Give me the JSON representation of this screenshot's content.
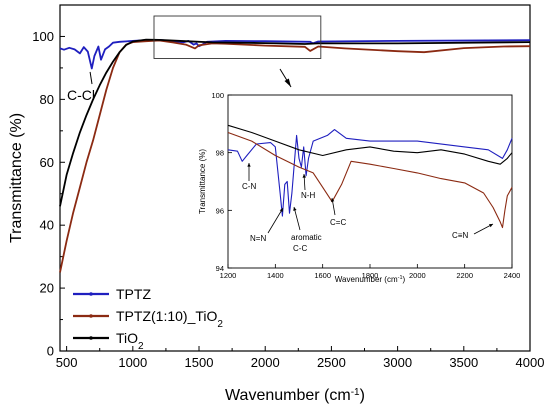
{
  "chart_data": [
    {
      "type": "line",
      "xlabel": "Wavenumber (cm",
      "xlabel_sup": "-1",
      "xlabel_end": ")",
      "ylabel": "Transmittance (%)",
      "xlim": [
        450,
        4000
      ],
      "ylim": [
        0,
        110
      ],
      "x_ticks": [
        500,
        1000,
        1500,
        2000,
        2500,
        3000,
        3500,
        4000
      ],
      "y_ticks": [
        0,
        20,
        40,
        60,
        80,
        100
      ],
      "legend": {
        "position": "bottom-left",
        "entries": [
          {
            "name": "TPTZ",
            "color": "#1f1fbf"
          },
          {
            "name": "TPTZ(1:10)_TiO",
            "sub": "2",
            "color": "#8b2a12"
          },
          {
            "name": "TiO",
            "sub": "2",
            "color": "#000000"
          }
        ]
      },
      "annotations": [
        {
          "text": "C-Cl",
          "x": 700,
          "y": 90
        }
      ],
      "series": [
        {
          "name": "TPTZ",
          "color": "#1f1fbf",
          "points": [
            [
              450,
              96.2
            ],
            [
              480,
              95.8
            ],
            [
              520,
              96.4
            ],
            [
              560,
              95.9
            ],
            [
              600,
              94.6
            ],
            [
              630,
              96.6
            ],
            [
              660,
              95.2
            ],
            [
              690,
              89.8
            ],
            [
              710,
              93.8
            ],
            [
              740,
              96.8
            ],
            [
              760,
              92.6
            ],
            [
              790,
              95.9
            ],
            [
              820,
              96.8
            ],
            [
              850,
              98.0
            ],
            [
              900,
              98.3
            ],
            [
              1000,
              98.6
            ],
            [
              1100,
              98.8
            ],
            [
              1200,
              98.9
            ],
            [
              1300,
              98.5
            ],
            [
              1380,
              98.1
            ],
            [
              1420,
              98.6
            ],
            [
              1460,
              97.4
            ],
            [
              1480,
              97.8
            ],
            [
              1500,
              96.9
            ],
            [
              1520,
              97.3
            ],
            [
              1560,
              98.3
            ],
            [
              1600,
              98.4
            ],
            [
              1700,
              98.6
            ],
            [
              2000,
              98.5
            ],
            [
              2340,
              98.3
            ],
            [
              2360,
              97.8
            ],
            [
              2400,
              98.4
            ],
            [
              3000,
              98.6
            ],
            [
              4000,
              98.8
            ]
          ]
        },
        {
          "name": "TPTZ(1:10)_TiO2",
          "color": "#8b2a12",
          "points": [
            [
              450,
              25
            ],
            [
              500,
              35
            ],
            [
              550,
              44
            ],
            [
              600,
              52
            ],
            [
              650,
              60
            ],
            [
              700,
              67
            ],
            [
              750,
              75
            ],
            [
              800,
              83
            ],
            [
              850,
              90
            ],
            [
              900,
              95
            ],
            [
              950,
              97.4
            ],
            [
              1000,
              98.2
            ],
            [
              1100,
              98.5
            ],
            [
              1200,
              98.7
            ],
            [
              1300,
              98.1
            ],
            [
              1400,
              97.4
            ],
            [
              1470,
              96.2
            ],
            [
              1500,
              97.2
            ],
            [
              1600,
              97.8
            ],
            [
              1700,
              97.7
            ],
            [
              2000,
              97.1
            ],
            [
              2300,
              96.7
            ],
            [
              2340,
              95.4
            ],
            [
              2400,
              96.8
            ],
            [
              2600,
              96.2
            ],
            [
              3000,
              95.3
            ],
            [
              3200,
              95.0
            ],
            [
              3500,
              96.3
            ],
            [
              3800,
              96.8
            ],
            [
              4000,
              96.9
            ]
          ]
        },
        {
          "name": "TiO2",
          "color": "#000000",
          "points": [
            [
              450,
              46
            ],
            [
              500,
              56
            ],
            [
              550,
              63
            ],
            [
              600,
              69.5
            ],
            [
              650,
              75
            ],
            [
              700,
              80
            ],
            [
              750,
              84.5
            ],
            [
              800,
              88.5
            ],
            [
              850,
              92
            ],
            [
              900,
              95
            ],
            [
              950,
              97.3
            ],
            [
              1000,
              98.4
            ],
            [
              1100,
              99.0
            ],
            [
              1200,
              98.9
            ],
            [
              1400,
              98.5
            ],
            [
              1600,
              98.1
            ],
            [
              1800,
              98.0
            ],
            [
              2000,
              97.9
            ],
            [
              2300,
              97.6
            ],
            [
              2400,
              97.8
            ],
            [
              3000,
              97.8
            ],
            [
              4000,
              98.2
            ]
          ]
        }
      ]
    },
    {
      "type": "line",
      "xlabel": "Wavenumber (cm",
      "xlabel_sup": "-1",
      "xlabel_end": ")",
      "ylabel": "Transmittance (%)",
      "xlim": [
        1200,
        2400
      ],
      "ylim": [
        94,
        100
      ],
      "x_ticks": [
        1200,
        1400,
        1600,
        1800,
        2000,
        2200,
        2400
      ],
      "y_ticks": [
        94,
        96,
        98,
        100
      ],
      "annotations": [
        {
          "text": "C-N",
          "x": 1270,
          "y": 97.05
        },
        {
          "text": "N=N",
          "x": 1400,
          "y": 95.2
        },
        {
          "text": "aromatic",
          "x": 1500,
          "y": 95.2
        },
        {
          "text": "C-C",
          "x": 1500,
          "y": 94.85
        },
        {
          "text": "N-H",
          "x": 1555,
          "y": 96.6
        },
        {
          "text": "C=C",
          "x": 1680,
          "y": 96.15
        },
        {
          "text": "C≡N",
          "x": 2290,
          "y": 95.3
        }
      ],
      "series": [
        {
          "name": "TPTZ",
          "color": "#1f1fbf",
          "points": [
            [
              1200,
              98.1
            ],
            [
              1240,
              98.05
            ],
            [
              1260,
              97.7
            ],
            [
              1280,
              97.9
            ],
            [
              1320,
              98.3
            ],
            [
              1380,
              98.35
            ],
            [
              1400,
              98.2
            ],
            [
              1420,
              96.6
            ],
            [
              1430,
              95.8
            ],
            [
              1440,
              96.9
            ],
            [
              1450,
              97.0
            ],
            [
              1460,
              95.9
            ],
            [
              1470,
              96.6
            ],
            [
              1490,
              98.6
            ],
            [
              1500,
              97.8
            ],
            [
              1510,
              97.5
            ],
            [
              1520,
              98.2
            ],
            [
              1530,
              97.2
            ],
            [
              1540,
              97.8
            ],
            [
              1560,
              98.4
            ],
            [
              1620,
              98.6
            ],
            [
              1650,
              98.8
            ],
            [
              1700,
              98.5
            ],
            [
              1800,
              98.4
            ],
            [
              2000,
              98.4
            ],
            [
              2200,
              98.2
            ],
            [
              2300,
              98.1
            ],
            [
              2360,
              97.8
            ],
            [
              2380,
              98.1
            ],
            [
              2400,
              98.5
            ]
          ]
        },
        {
          "name": "TPTZ(1:10)_TiO2",
          "color": "#8b2a12",
          "points": [
            [
              1200,
              98.7
            ],
            [
              1300,
              98.4
            ],
            [
              1400,
              97.9
            ],
            [
              1500,
              97.5
            ],
            [
              1560,
              97.3
            ],
            [
              1600,
              96.8
            ],
            [
              1640,
              96.3
            ],
            [
              1680,
              96.9
            ],
            [
              1720,
              97.7
            ],
            [
              1800,
              97.6
            ],
            [
              1900,
              97.45
            ],
            [
              2000,
              97.3
            ],
            [
              2100,
              97.1
            ],
            [
              2200,
              96.95
            ],
            [
              2280,
              96.6
            ],
            [
              2320,
              96.1
            ],
            [
              2350,
              95.6
            ],
            [
              2360,
              95.4
            ],
            [
              2370,
              96.0
            ],
            [
              2380,
              96.5
            ],
            [
              2400,
              96.8
            ]
          ]
        },
        {
          "name": "TiO2",
          "color": "#000000",
          "points": [
            [
              1200,
              98.95
            ],
            [
              1300,
              98.7
            ],
            [
              1400,
              98.4
            ],
            [
              1500,
              98.1
            ],
            [
              1600,
              97.9
            ],
            [
              1700,
              98.1
            ],
            [
              1800,
              98.2
            ],
            [
              1900,
              98.05
            ],
            [
              2000,
              98.0
            ],
            [
              2100,
              98.1
            ],
            [
              2200,
              97.95
            ],
            [
              2300,
              97.7
            ],
            [
              2350,
              97.6
            ],
            [
              2380,
              97.8
            ],
            [
              2400,
              98.0
            ]
          ]
        }
      ]
    }
  ]
}
